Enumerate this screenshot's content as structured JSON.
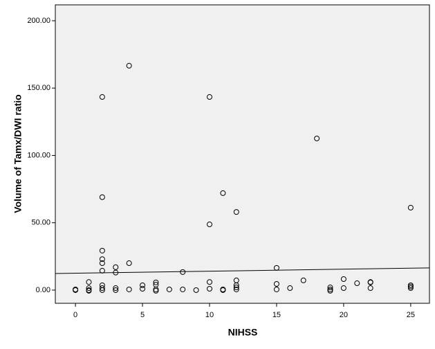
{
  "chart_data": {
    "type": "scatter",
    "x_label": "NIHSS",
    "y_label": "Volume of Tamx/DWI ratio",
    "xlim": [
      -1.5,
      26.4
    ],
    "ylim": [
      -9.8,
      211.8
    ],
    "xticks": [
      0,
      5,
      10,
      15,
      20,
      25
    ],
    "yticks": [
      {
        "value": 0,
        "label": "0.00"
      },
      {
        "value": 50,
        "label": "50.00"
      },
      {
        "value": 100,
        "label": "100.00"
      },
      {
        "value": 150,
        "label": "150.00"
      },
      {
        "value": 200,
        "label": "200.00"
      }
    ],
    "color": "#000000",
    "background": "#f0f0f0",
    "series": [
      {
        "x": [
          0,
          0,
          1,
          1,
          1,
          1,
          2,
          2,
          2,
          2,
          2,
          2,
          2,
          2,
          2,
          3,
          3,
          3,
          3,
          4,
          4,
          4,
          5,
          5,
          6,
          6,
          6,
          6,
          7,
          8,
          8,
          9,
          10,
          10,
          10,
          10,
          11,
          11,
          11,
          12,
          12,
          12,
          12,
          12,
          15,
          15,
          15,
          16,
          17,
          18,
          19,
          19,
          19,
          20,
          20,
          21,
          22,
          22,
          22,
          25,
          25,
          25,
          25
        ],
        "values": [
          0.5,
          0,
          6,
          1.5,
          0,
          -0.5,
          143.4,
          69,
          29.3,
          23,
          20,
          14.4,
          3.6,
          1.5,
          0,
          17,
          13,
          1.5,
          0,
          166.6,
          20,
          0.5,
          3.6,
          1,
          5.7,
          4,
          0.5,
          -0.5,
          0.5,
          13.4,
          0.5,
          0,
          143.4,
          48.8,
          6,
          1,
          72,
          0.5,
          0,
          58,
          7.2,
          3.6,
          2,
          0.5,
          16.5,
          4.6,
          0.5,
          1.5,
          7.2,
          112.6,
          2,
          0.5,
          -0.5,
          8.2,
          1.5,
          5.1,
          6,
          5.7,
          1.5,
          61.2,
          3.6,
          2.6,
          1.5
        ]
      }
    ],
    "fit_line": {
      "x": [
        -1.5,
        26.4
      ],
      "y": [
        12.3,
        16.5
      ]
    }
  }
}
